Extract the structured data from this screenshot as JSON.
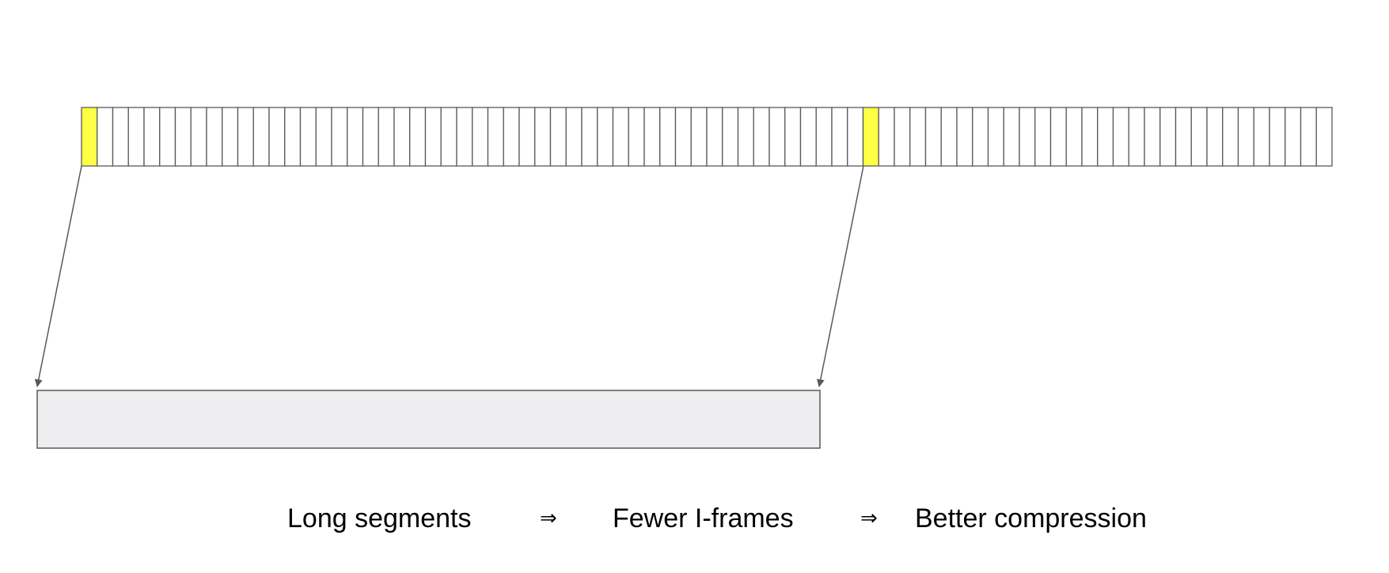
{
  "colors": {
    "frame_fill": "#ffffff",
    "keyframe_fill": "#ffff44",
    "segment_fill": "#eeeef0",
    "stroke": "#595959"
  },
  "frame_strip": {
    "frame_count": 80,
    "keyframe_indices": [
      0,
      50
    ]
  },
  "caption": {
    "part1": "Long segments",
    "arrow1": "⇒",
    "part2": "Fewer I-frames",
    "arrow2": "⇒",
    "part3": "Better compression"
  }
}
